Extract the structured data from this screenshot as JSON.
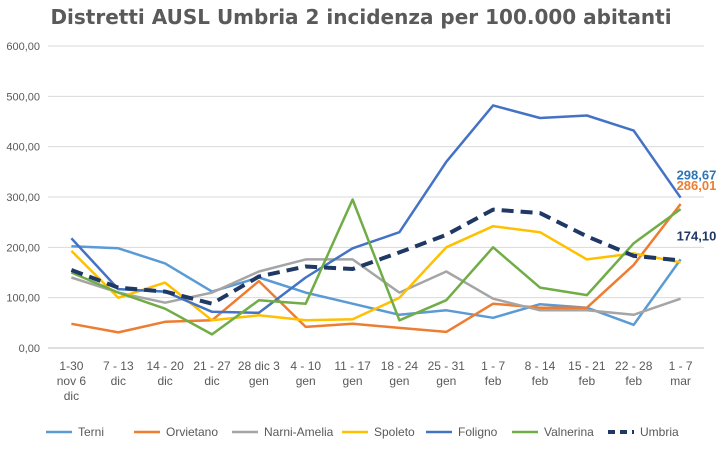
{
  "chart_data": {
    "type": "line",
    "title": "Distretti AUSL Umbria 2 incidenza per 100.000 abitanti",
    "xlabel": "",
    "ylabel": "",
    "ylim": [
      0,
      600
    ],
    "grid": true,
    "legend_position": "bottom",
    "yticks": [
      "0,00",
      "100,00",
      "200,00",
      "300,00",
      "400,00",
      "500,00",
      "600,00"
    ],
    "categories": [
      [
        "1-30",
        "nov 6",
        "dic"
      ],
      [
        "7 - 13",
        "dic"
      ],
      [
        "14 - 20",
        "dic"
      ],
      [
        "21 - 27",
        "dic"
      ],
      [
        "28 dic 3",
        "gen"
      ],
      [
        "4 - 10",
        "gen"
      ],
      [
        "11 - 17",
        "gen"
      ],
      [
        "18 - 24",
        "gen"
      ],
      [
        "25 - 31",
        "gen"
      ],
      [
        "1 - 7",
        "feb"
      ],
      [
        "8 - 14",
        "feb"
      ],
      [
        "15 - 21",
        "feb"
      ],
      [
        "22 - 28",
        "feb"
      ],
      [
        "1 - 7",
        "mar"
      ]
    ],
    "series": [
      {
        "name": "Terni",
        "color": "#5b9bd5",
        "dash": false,
        "values": [
          202,
          198,
          168,
          112,
          140,
          110,
          88,
          66,
          75,
          60,
          87,
          80,
          46,
          176
        ]
      },
      {
        "name": "Orvietano",
        "color": "#ed7d31",
        "dash": false,
        "values": [
          48,
          31,
          52,
          55,
          133,
          42,
          48,
          40,
          32,
          88,
          80,
          80,
          165,
          286.01
        ]
      },
      {
        "name": "Narni-Amelia",
        "color": "#a5a5a5",
        "dash": false,
        "values": [
          140,
          110,
          90,
          110,
          152,
          176,
          176,
          110,
          152,
          98,
          75,
          75,
          66,
          98
        ]
      },
      {
        "name": "Spoleto",
        "color": "#ffc000",
        "dash": false,
        "values": [
          193,
          100,
          130,
          55,
          65,
          55,
          57,
          100,
          200,
          242,
          230,
          176,
          188,
          170
        ]
      },
      {
        "name": "Foligno",
        "color": "#4472c4",
        "dash": false,
        "values": [
          218,
          117,
          112,
          72,
          70,
          140,
          198,
          230,
          370,
          482,
          457,
          462,
          432,
          298.67
        ]
      },
      {
        "name": "Valnerina",
        "color": "#70ad47",
        "dash": false,
        "values": [
          150,
          110,
          78,
          27,
          95,
          88,
          295,
          55,
          95,
          200,
          120,
          105,
          208,
          276
        ]
      },
      {
        "name": "Umbria",
        "color": "#1f3864",
        "dash": true,
        "values": [
          155,
          120,
          112,
          88,
          142,
          162,
          157,
          190,
          225,
          275,
          268,
          222,
          183,
          174.1
        ]
      }
    ],
    "end_labels": [
      {
        "text": "298,67",
        "color": "#2e75b6"
      },
      {
        "text": "286,01",
        "color": "#ed7d31"
      },
      {
        "text": "174,10",
        "color": "#1f3864"
      }
    ]
  }
}
